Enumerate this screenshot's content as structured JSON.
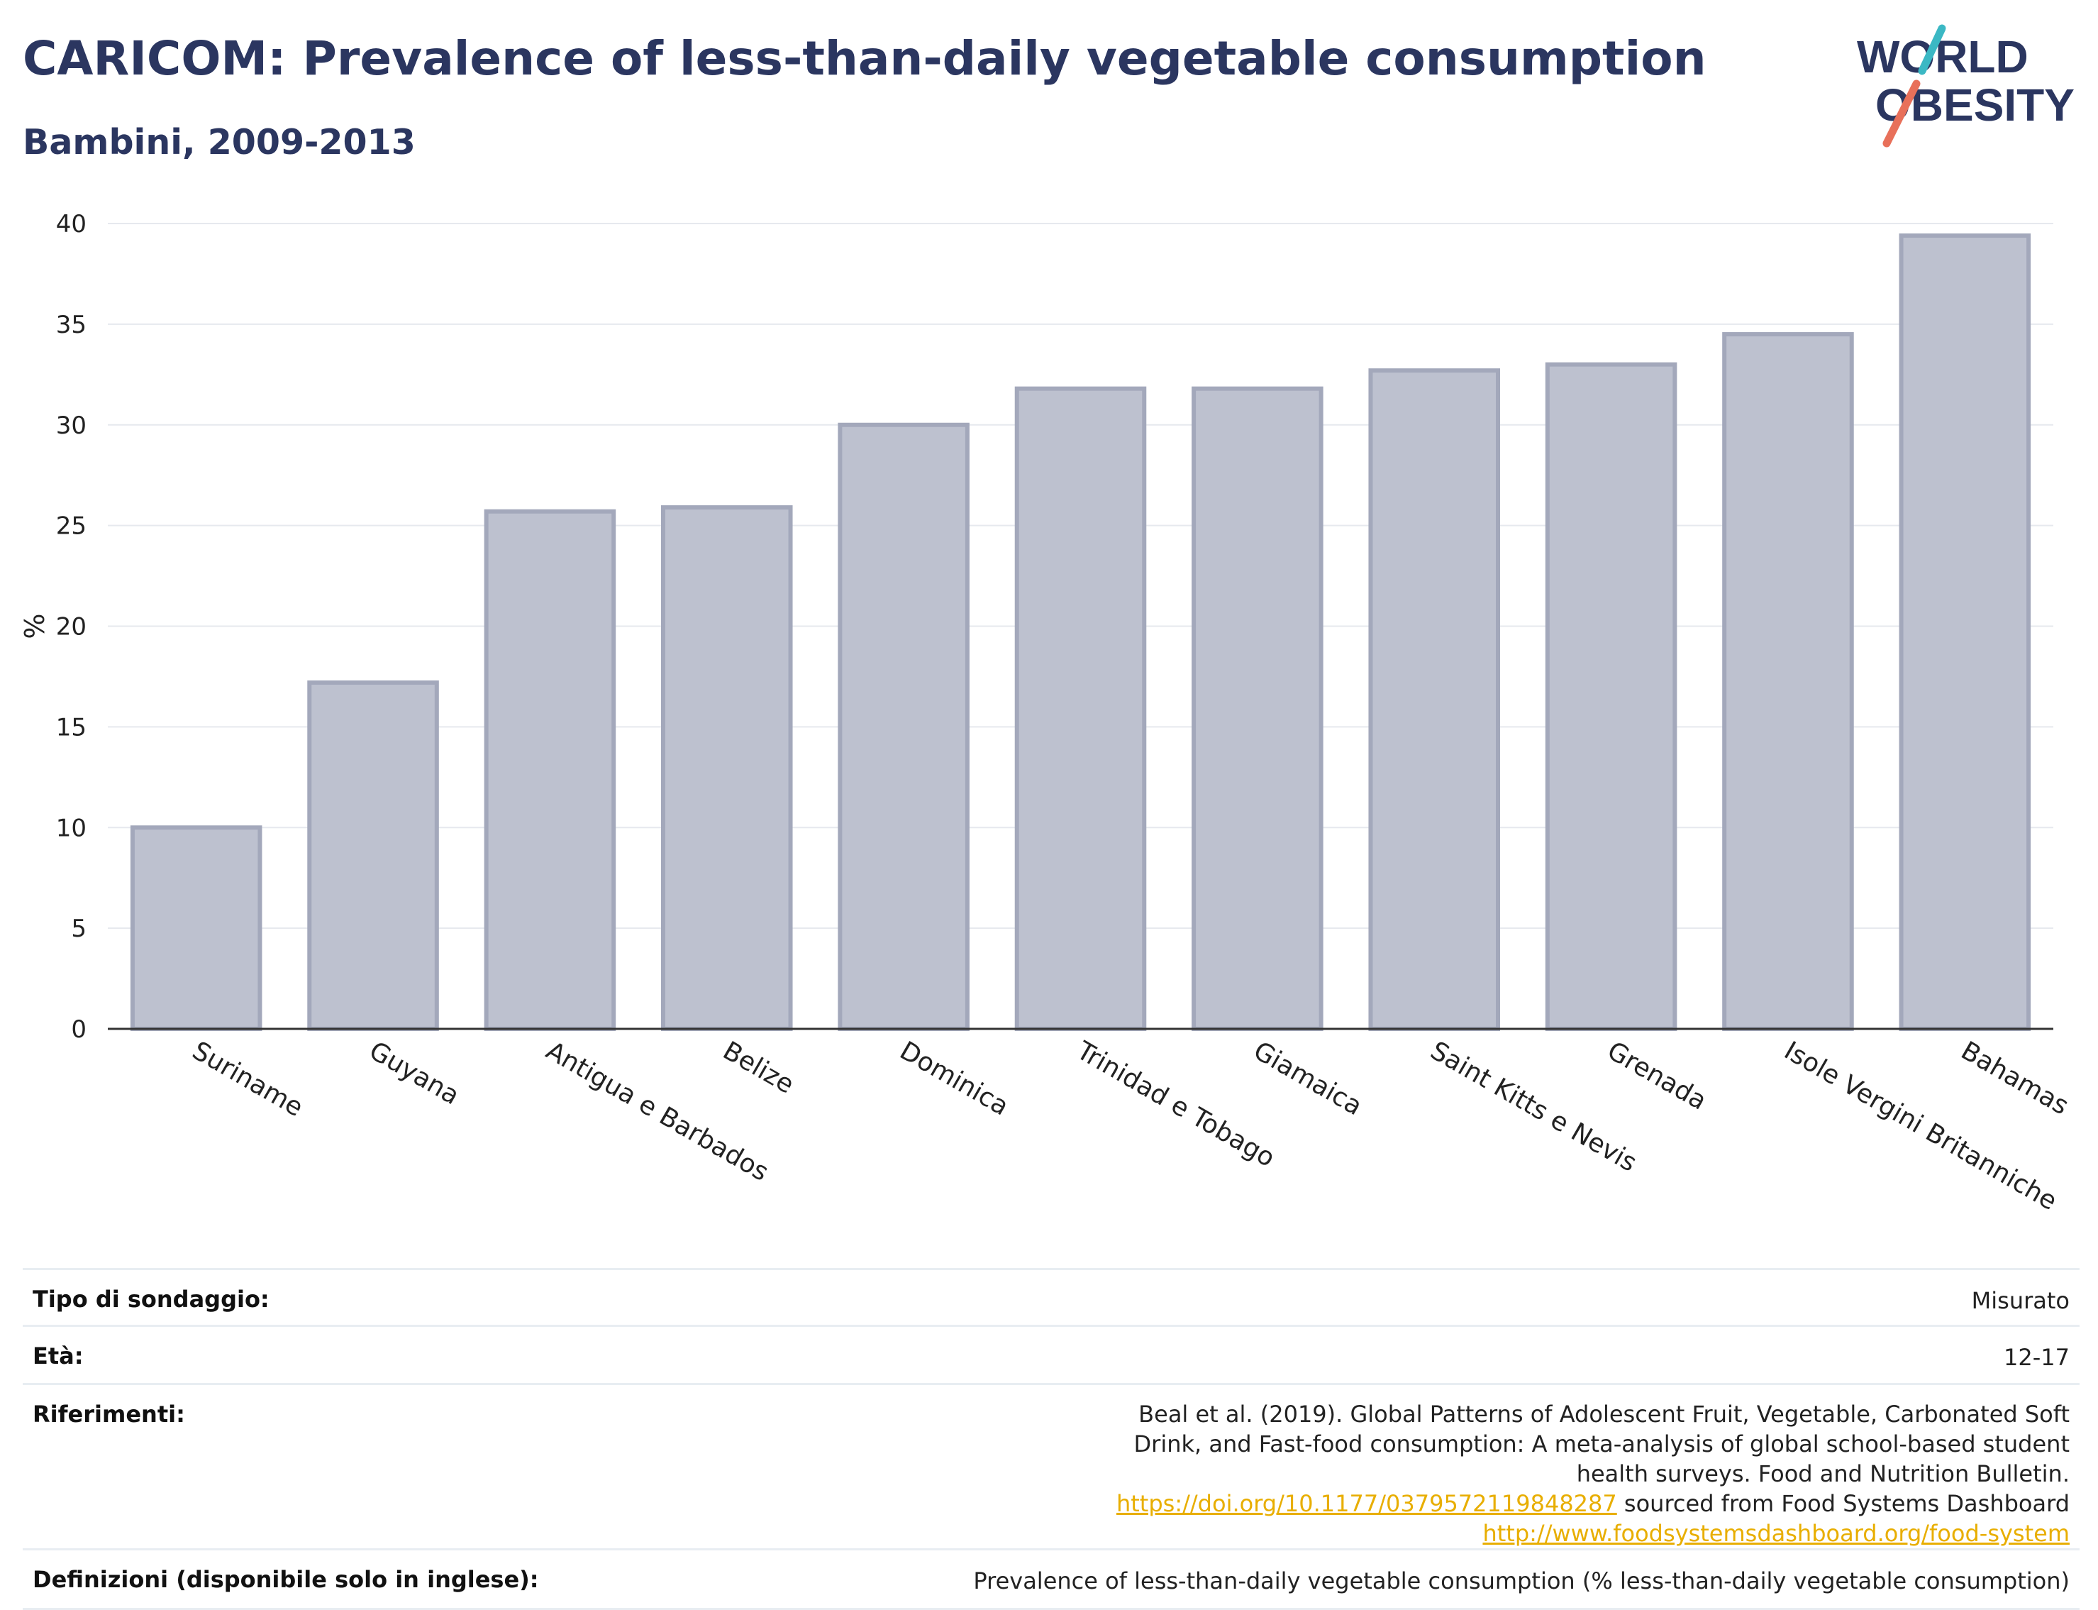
{
  "header": {
    "title": "CARICOM: Prevalence of less-than-daily vegetable consumption",
    "subtitle": "Bambini, 2009-2013"
  },
  "logo": {
    "line1": "WORLD",
    "line2": "OBESITY",
    "slash_colors": [
      "#3bb8c4",
      "#e8705a"
    ],
    "text_color": "#2b3660"
  },
  "chart_data": {
    "type": "bar",
    "categories": [
      "Suriname",
      "Guyana",
      "Antigua e Barbados",
      "Belize",
      "Dominica",
      "Trinidad e Tobago",
      "Giamaica",
      "Saint Kitts e Nevis",
      "Grenada",
      "Isole Vergini Britanniche",
      "Bahamas"
    ],
    "values": [
      10.0,
      17.2,
      25.7,
      25.9,
      30.0,
      31.8,
      31.8,
      32.7,
      33.0,
      34.5,
      39.4
    ],
    "ylabel": "%",
    "ylim": [
      0,
      40
    ],
    "yticks": [
      0,
      5,
      10,
      15,
      20,
      25,
      30,
      35,
      40
    ],
    "grid": true,
    "bar_fill": "#bdc1cf",
    "bar_stroke": "#a3a8bb"
  },
  "meta": {
    "survey_type_label": "Tipo di sondaggio:",
    "survey_type_value": "Misurato",
    "age_label": "Età:",
    "age_value": "12-17",
    "references_label": "Riferimenti:",
    "references_text_1": "Beal et al. (2019). Global Patterns of Adolescent Fruit, Vegetable, Carbonated Soft Drink, and Fast-food consumption: A meta-analysis of global school-based student health surveys. Food and Nutrition Bulletin. ",
    "references_link_1": "https://doi.org/10.1177/0379572119848287",
    "references_text_2": " sourced from Food Systems Dashboard ",
    "references_link_2": "http://www.foodsystemsdashboard.org/food-system",
    "definitions_label": "Definizioni (disponibile solo in inglese):",
    "definitions_value": "Prevalence of less-than-daily vegetable consumption (% less-than-daily vegetable consumption)"
  }
}
